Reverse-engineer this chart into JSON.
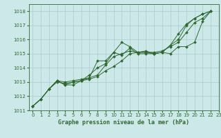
{
  "title": "Graphe pression niveau de la mer (hPa)",
  "bg_color": "#cce8e8",
  "grid_color": "#aacccc",
  "line_color": "#2d6b2d",
  "marker_color": "#2d6b2d",
  "xlim": [
    -0.5,
    23
  ],
  "ylim": [
    1011,
    1018.5
  ],
  "yticks": [
    1011,
    1012,
    1013,
    1014,
    1015,
    1016,
    1017,
    1018
  ],
  "xticks": [
    0,
    1,
    2,
    3,
    4,
    5,
    6,
    7,
    8,
    9,
    10,
    11,
    12,
    13,
    14,
    15,
    16,
    17,
    18,
    19,
    20,
    21,
    22,
    23
  ],
  "series": [
    [
      1011.3,
      1011.8,
      1012.5,
      1013.1,
      1012.8,
      1013.0,
      1013.1,
      1013.5,
      1014.0,
      1014.3,
      1015.1,
      1015.8,
      1015.5,
      1015.1,
      1015.1,
      1015.0,
      1015.1,
      1015.6,
      1016.4,
      1017.1,
      1017.5,
      1017.8,
      1018.0
    ],
    [
      1011.3,
      1011.8,
      1012.5,
      1013.1,
      1013.0,
      1013.1,
      1013.2,
      1013.3,
      1013.5,
      1014.2,
      1014.8,
      1015.0,
      1015.2,
      1015.1,
      1015.2,
      1015.0,
      1015.1,
      1015.0,
      1015.5,
      1015.5,
      1015.8,
      1017.3,
      1018.0
    ],
    [
      1011.3,
      1011.8,
      1012.5,
      1013.1,
      1012.8,
      1012.8,
      1013.1,
      1013.3,
      1014.5,
      1014.5,
      1015.1,
      1014.9,
      1015.4,
      1015.0,
      1015.0,
      1015.0,
      1015.1,
      1015.6,
      1016.0,
      1017.0,
      1017.5,
      1017.8,
      1018.0
    ],
    [
      1011.3,
      1011.8,
      1012.5,
      1013.0,
      1012.9,
      1013.0,
      1013.1,
      1013.2,
      1013.4,
      1013.8,
      1014.1,
      1014.5,
      1015.0,
      1015.1,
      1015.1,
      1015.1,
      1015.2,
      1015.5,
      1015.8,
      1016.5,
      1017.2,
      1017.5,
      1018.0
    ]
  ],
  "tick_fontsize": 5,
  "label_fontsize": 6,
  "linewidth": 0.7,
  "markersize": 2.0
}
